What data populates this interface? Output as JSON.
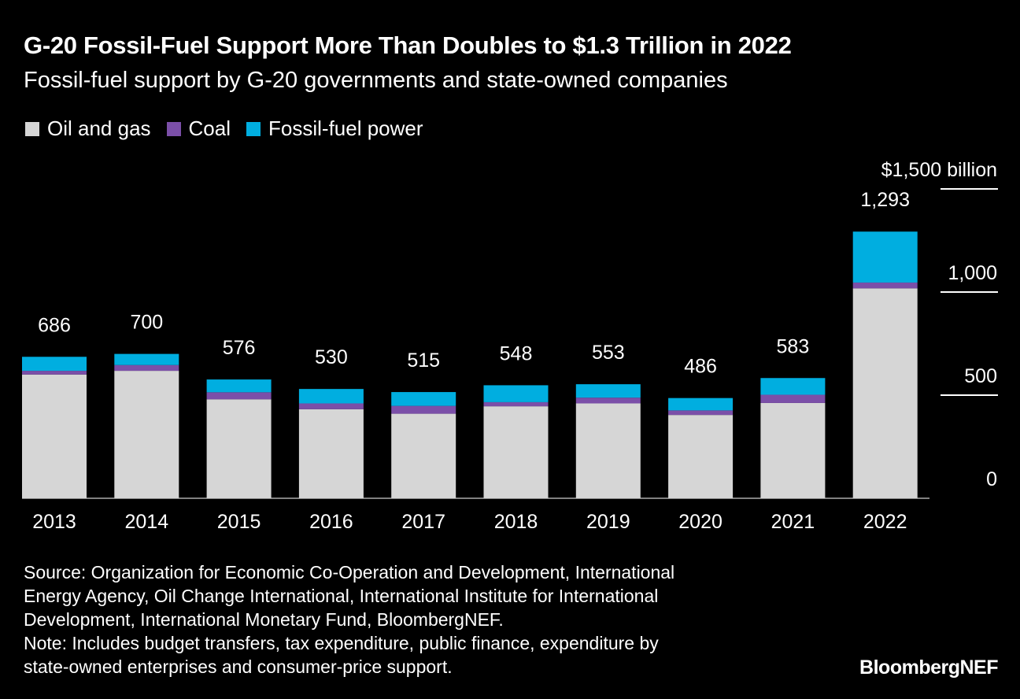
{
  "title": "G-20 Fossil-Fuel Support More Than Doubles to $1.3 Trillion in 2022",
  "subtitle": "Fossil-fuel support by G-20 governments and state-owned companies",
  "legend": [
    {
      "label": "Oil and gas",
      "color": "#d6d6d6"
    },
    {
      "label": "Coal",
      "color": "#7b4fa8"
    },
    {
      "label": "Fossil-fuel power",
      "color": "#00aee0"
    }
  ],
  "chart_data": {
    "type": "bar",
    "stacked": true,
    "categories": [
      "2013",
      "2014",
      "2015",
      "2016",
      "2017",
      "2018",
      "2019",
      "2020",
      "2021",
      "2022"
    ],
    "series": [
      {
        "name": "Oil and gas",
        "color": "#d6d6d6",
        "values": [
          600,
          618,
          480,
          432,
          410,
          446,
          460,
          404,
          462,
          1018
        ]
      },
      {
        "name": "Coal",
        "color": "#7b4fa8",
        "values": [
          18,
          28,
          34,
          28,
          38,
          20,
          28,
          22,
          40,
          28
        ]
      },
      {
        "name": "Fossil-fuel power",
        "color": "#00aee0",
        "values": [
          68,
          54,
          62,
          70,
          67,
          82,
          65,
          60,
          81,
          247
        ]
      }
    ],
    "totals": [
      "686",
      "700",
      "576",
      "530",
      "515",
      "548",
      "553",
      "486",
      "583",
      "1,293"
    ],
    "yaxis": {
      "ticks": [
        0,
        500,
        1000,
        1500
      ],
      "tick_labels": [
        "0",
        "500",
        "1,000",
        "$1,500 billion"
      ],
      "ylim": [
        0,
        1500
      ],
      "position": "right"
    },
    "xlabel": "",
    "ylabel": "",
    "grid": false
  },
  "footer": {
    "source_lines": [
      "Source: Organization for Economic Co-Operation and Development, International",
      "Energy Agency, Oil Change International, International Institute for International",
      "Development, International Monetary Fund, BloombergNEF."
    ],
    "note_lines": [
      "Note: Includes budget transfers, tax expenditure, public finance, expenditure by",
      "state-owned enterprises and consumer-price support."
    ]
  },
  "brand": "BloombergNEF"
}
